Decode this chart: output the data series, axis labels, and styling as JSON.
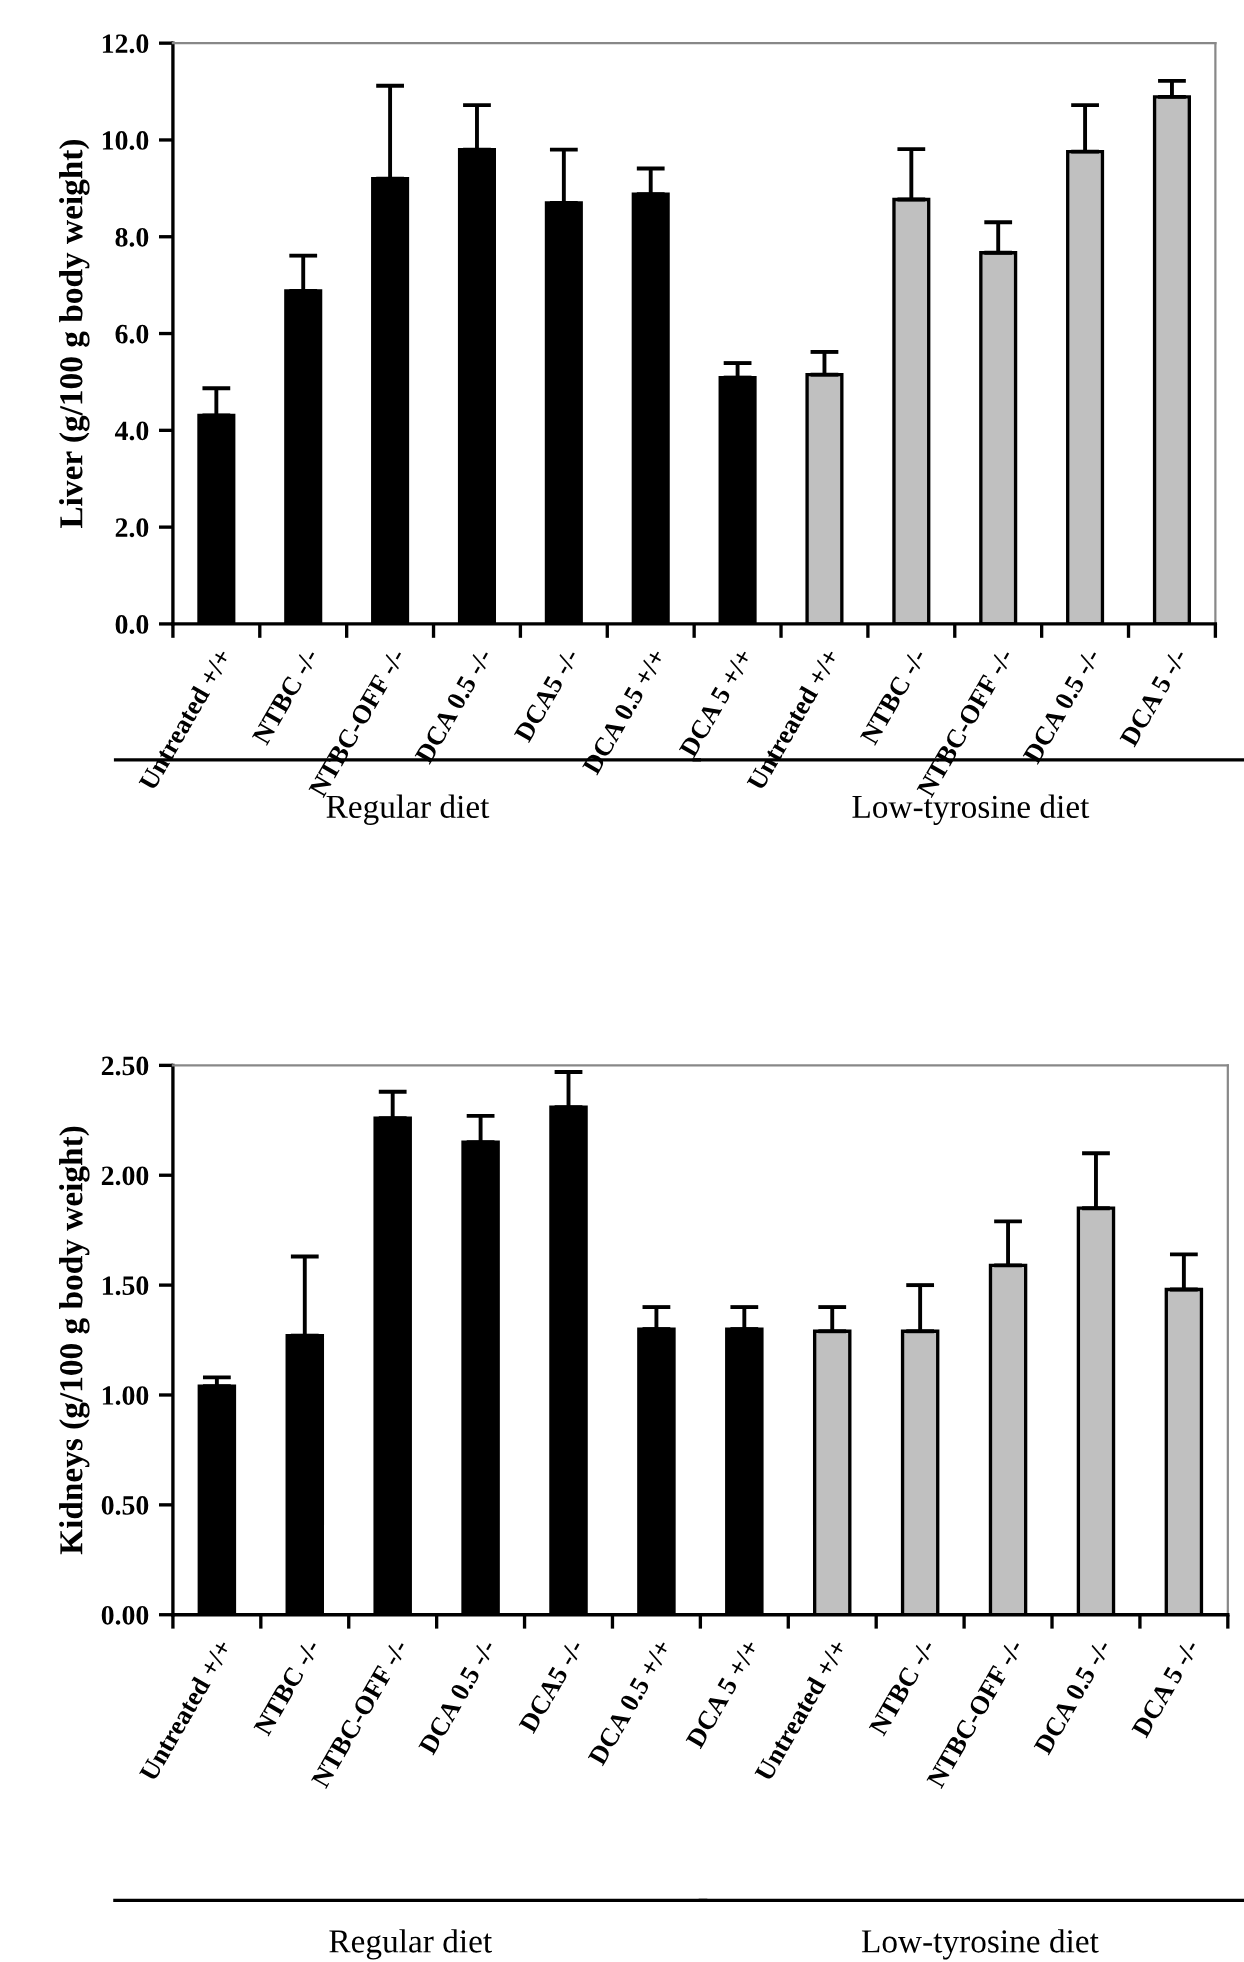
{
  "chart_data": [
    {
      "type": "bar",
      "ylabel": "Liver (g/100 g body weight)",
      "categories": [
        "Untreated +/+",
        "NTBC -/-",
        "NTBC-OFF -/-",
        "DCA 0.5 -/-",
        "DCA5 -/-",
        "DCA 0.5 +/+",
        "DCA 5 +/+",
        "Untreated +/+",
        "NTBC -/-",
        "NTBC-OFF -/-",
        "DCA 0.5 -/-",
        "DCA 5 -/-"
      ],
      "values": [
        4.31,
        6.88,
        9.2,
        9.8,
        8.7,
        8.88,
        5.09,
        5.15,
        8.77,
        7.67,
        9.76,
        10.89
      ],
      "errors": [
        [
          4.31,
          4.87
        ],
        [
          6.88,
          7.61
        ],
        [
          9.2,
          11.12
        ],
        [
          9.8,
          10.72
        ],
        [
          8.7,
          9.8
        ],
        [
          8.88,
          9.41
        ],
        [
          5.09,
          5.39
        ],
        [
          5.15,
          5.62
        ],
        [
          8.77,
          9.81
        ],
        [
          7.67,
          8.3
        ],
        [
          9.76,
          10.72
        ],
        [
          10.89,
          11.22
        ]
      ],
      "colors": [
        "#000000",
        "#000000",
        "#000000",
        "#000000",
        "#000000",
        "#000000",
        "#000000",
        "#c0c0c0",
        "#c0c0c0",
        "#c0c0c0",
        "#c0c0c0",
        "#c0c0c0"
      ],
      "ylim": [
        0,
        12
      ],
      "yticks": [
        {
          "value": 0,
          "label": "0.0"
        },
        {
          "value": 2,
          "label": "2.0"
        },
        {
          "value": 4,
          "label": "4.0"
        },
        {
          "value": 6,
          "label": "6.0"
        },
        {
          "value": 8,
          "label": "8.0"
        },
        {
          "value": 10,
          "label": "10.0"
        },
        {
          "value": 12,
          "label": "12.0"
        }
      ],
      "grid": false,
      "legend": false,
      "annotations": [
        "Regular diet",
        "Low-tyrosine diet"
      ]
    },
    {
      "type": "bar",
      "ylabel": "Kidneys (g/100 g body weight)",
      "categories": [
        "Untreated +/+",
        "NTBC -/-",
        "NTBC-OFF -/-",
        "DCA 0.5 -/-",
        "DCA5 -/-",
        "DCA 0.5 +/+",
        "DCA 5 +/+",
        "Untreated +/+",
        "NTBC -/-",
        "NTBC-OFF -/-",
        "DCA 0.5 -/-",
        "DCA 5 -/-"
      ],
      "values": [
        1.04,
        1.27,
        2.26,
        2.15,
        2.31,
        1.3,
        1.3,
        1.29,
        1.29,
        1.59,
        1.85,
        1.48
      ],
      "errors": [
        [
          1.04,
          1.08
        ],
        [
          1.27,
          1.63
        ],
        [
          2.26,
          2.38
        ],
        [
          2.15,
          2.27
        ],
        [
          2.31,
          2.47
        ],
        [
          1.3,
          1.4
        ],
        [
          1.3,
          1.4
        ],
        [
          1.29,
          1.4
        ],
        [
          1.29,
          1.5
        ],
        [
          1.59,
          1.79
        ],
        [
          1.85,
          2.1
        ],
        [
          1.48,
          1.64
        ]
      ],
      "colors": [
        "#000000",
        "#000000",
        "#000000",
        "#000000",
        "#000000",
        "#000000",
        "#000000",
        "#c0c0c0",
        "#c0c0c0",
        "#c0c0c0",
        "#c0c0c0",
        "#c0c0c0"
      ],
      "ylim": [
        0,
        2.5
      ],
      "yticks": [
        {
          "value": 0,
          "label": "0.00"
        },
        {
          "value": 0.5,
          "label": "0.50"
        },
        {
          "value": 1,
          "label": "1.00"
        },
        {
          "value": 1.5,
          "label": "1.50"
        },
        {
          "value": 2,
          "label": "2.00"
        },
        {
          "value": 2.5,
          "label": "2.50"
        }
      ],
      "grid": false,
      "legend": false,
      "annotations": [
        "Regular diet",
        "Low-tyrosine diet"
      ]
    }
  ]
}
